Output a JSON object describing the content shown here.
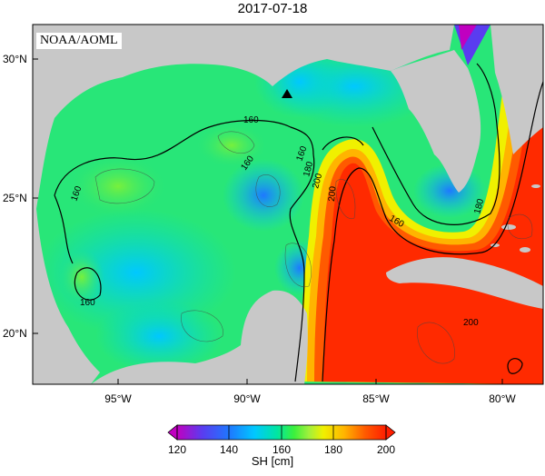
{
  "title": "2017-07-18",
  "credit": "NOAA/AOML",
  "axes": {
    "lat_ticks": [
      "30°N",
      "25°N",
      "20°N"
    ],
    "lon_ticks": [
      "95°W",
      "90°W",
      "85°W",
      "80°W"
    ],
    "lon_range": [
      -98.5,
      -78
    ],
    "lat_range": [
      18,
      31
    ]
  },
  "contour_labels": [
    "160",
    "160",
    "160",
    "160",
    "160",
    "180",
    "200",
    "200",
    "160",
    "180",
    "200"
  ],
  "marker": {
    "name": "triangle",
    "lon": -88.4,
    "lat": 28.6
  },
  "colorbar": {
    "label": "SH [cm]",
    "ticks": [
      "120",
      "140",
      "160",
      "180",
      "200"
    ],
    "range": [
      120,
      200
    ],
    "colors": [
      "#c000c0",
      "#5a3cf0",
      "#1e78ff",
      "#00c8ff",
      "#00e6a0",
      "#3cf03c",
      "#a0f03c",
      "#f0f000",
      "#ffb400",
      "#ff5a00",
      "#ff1e00"
    ]
  },
  "colors": {
    "land": "#c8c8c8",
    "water_low": "#00c8ff",
    "water_mid": "#28e678",
    "loop_current": "#ff2a00"
  }
}
